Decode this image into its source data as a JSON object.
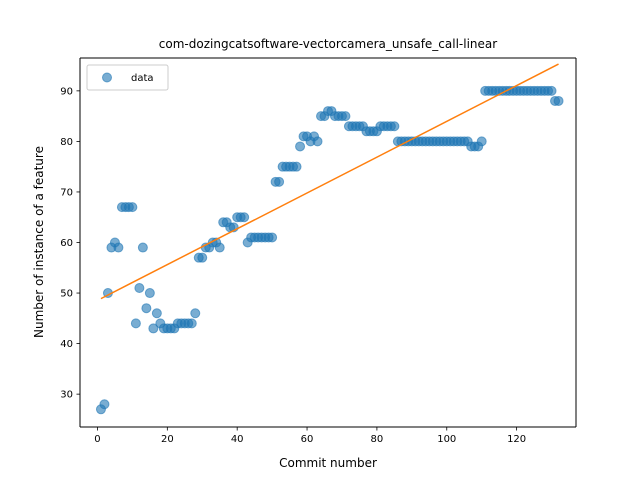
{
  "chart_data": {
    "type": "scatter",
    "title": "com-dozingcatsoftware-vectorcamera_unsafe_call-linear",
    "xlabel": "Commit number",
    "ylabel": "Number of instance of a feature",
    "xlim": [
      -5,
      137
    ],
    "ylim": [
      23.5,
      96.5
    ],
    "xticks": [
      0,
      20,
      40,
      60,
      80,
      100,
      120
    ],
    "yticks": [
      30,
      40,
      50,
      60,
      70,
      80,
      90
    ],
    "legend": {
      "placement": "top-left",
      "entries": [
        "data"
      ]
    },
    "grid": false,
    "colors": {
      "scatter": "#1f77b4",
      "fit": "#ff7f0e"
    },
    "series": [
      {
        "name": "data",
        "kind": "scatter",
        "x": [
          1,
          2,
          3,
          4,
          5,
          6,
          7,
          8,
          9,
          10,
          11,
          12,
          13,
          14,
          15,
          16,
          17,
          18,
          19,
          20,
          21,
          22,
          23,
          24,
          25,
          26,
          27,
          28,
          29,
          30,
          31,
          32,
          33,
          34,
          35,
          36,
          37,
          38,
          39,
          40,
          41,
          42,
          43,
          44,
          45,
          46,
          47,
          48,
          49,
          50,
          51,
          52,
          53,
          54,
          55,
          56,
          57,
          58,
          59,
          60,
          61,
          62,
          63,
          64,
          65,
          66,
          67,
          68,
          69,
          70,
          71,
          72,
          73,
          74,
          75,
          76,
          77,
          78,
          79,
          80,
          81,
          82,
          83,
          84,
          85,
          86,
          87,
          88,
          89,
          90,
          91,
          92,
          93,
          94,
          95,
          96,
          97,
          98,
          99,
          100,
          101,
          102,
          103,
          104,
          105,
          106,
          107,
          108,
          109,
          110,
          111,
          112,
          113,
          114,
          115,
          116,
          117,
          118,
          119,
          120,
          121,
          122,
          123,
          124,
          125,
          126,
          127,
          128,
          129,
          130,
          131,
          132
        ],
        "y": [
          27,
          28,
          50,
          59,
          60,
          59,
          67,
          67,
          67,
          67,
          44,
          51,
          59,
          47,
          50,
          43,
          46,
          44,
          43,
          43,
          43,
          43,
          44,
          44,
          44,
          44,
          44,
          46,
          57,
          57,
          59,
          59,
          60,
          60,
          59,
          64,
          64,
          63,
          63,
          65,
          65,
          65,
          60,
          61,
          61,
          61,
          61,
          61,
          61,
          61,
          72,
          72,
          75,
          75,
          75,
          75,
          75,
          79,
          81,
          81,
          80,
          81,
          80,
          85,
          85,
          86,
          86,
          85,
          85,
          85,
          85,
          83,
          83,
          83,
          83,
          83,
          82,
          82,
          82,
          82,
          83,
          83,
          83,
          83,
          83,
          80,
          80,
          80,
          80,
          80,
          80,
          80,
          80,
          80,
          80,
          80,
          80,
          80,
          80,
          80,
          80,
          80,
          80,
          80,
          80,
          80,
          79,
          79,
          79,
          80,
          90,
          90,
          90,
          90,
          90,
          90,
          90,
          90,
          90,
          90,
          90,
          90,
          90,
          90,
          90,
          90,
          90,
          90,
          90,
          90,
          88,
          88
        ]
      },
      {
        "name": "",
        "kind": "line",
        "x": [
          1,
          132
        ],
        "y": [
          48.9,
          95.3
        ]
      }
    ]
  }
}
